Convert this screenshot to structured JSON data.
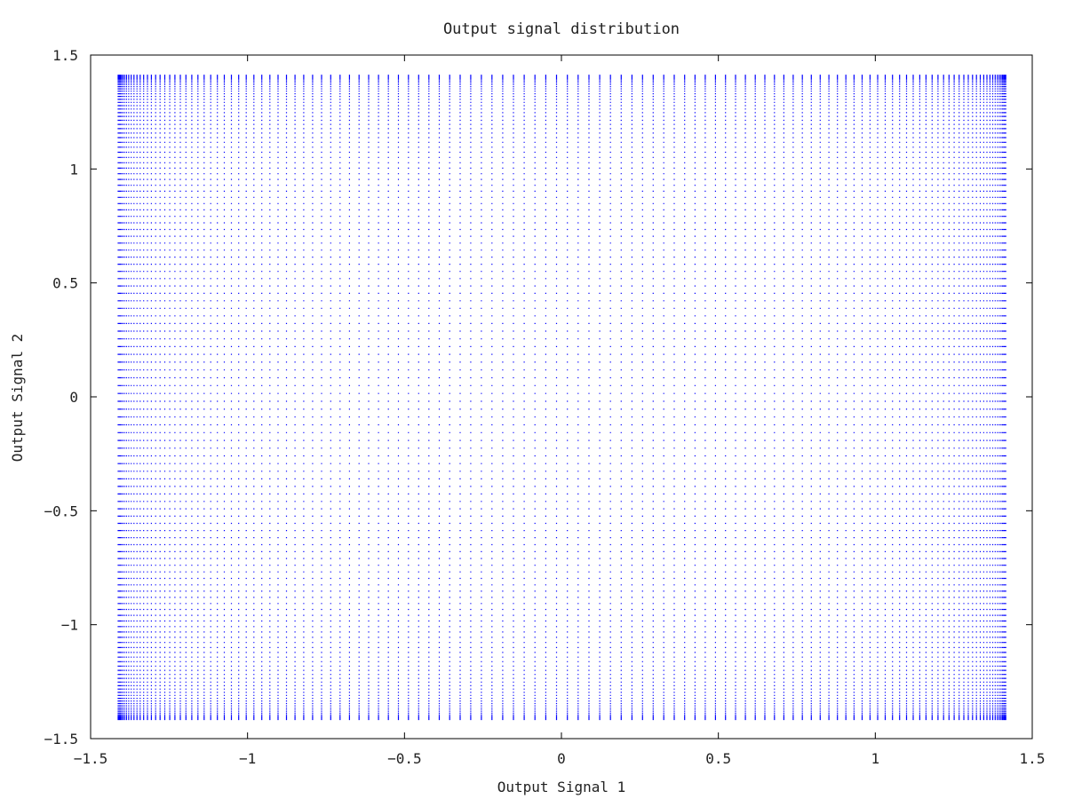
{
  "chart_data": {
    "type": "scatter",
    "title": "Output signal distribution",
    "xlabel": "Output Signal 1",
    "ylabel": "Output Signal 2",
    "xlim": [
      -1.5,
      1.5
    ],
    "ylim": [
      -1.5,
      1.5
    ],
    "xticks": [
      -1.5,
      -1,
      -0.5,
      0,
      0.5,
      1,
      1.5
    ],
    "yticks": [
      -1.5,
      -1,
      -0.5,
      0,
      0.5,
      1,
      1.5
    ],
    "xtick_labels": [
      "−1.5",
      "−1",
      "−0.5",
      "0",
      "0.5",
      "1",
      "1.5"
    ],
    "ytick_labels": [
      "−1.5",
      "−1",
      "−0.5",
      "0",
      "0.5",
      "1",
      "1.5"
    ],
    "grid": false,
    "series": [
      {
        "color": "#0000ff",
        "marker": "point",
        "description_of_values": "x = sqrt(2)*sin(a), y = sqrt(2)*sin(b) for a, b sampled on a uniform grid; density rises near the edges +/-1.414",
        "x_range": [
          -1.414,
          1.414
        ],
        "y_range": [
          -1.414,
          1.414
        ]
      }
    ]
  }
}
